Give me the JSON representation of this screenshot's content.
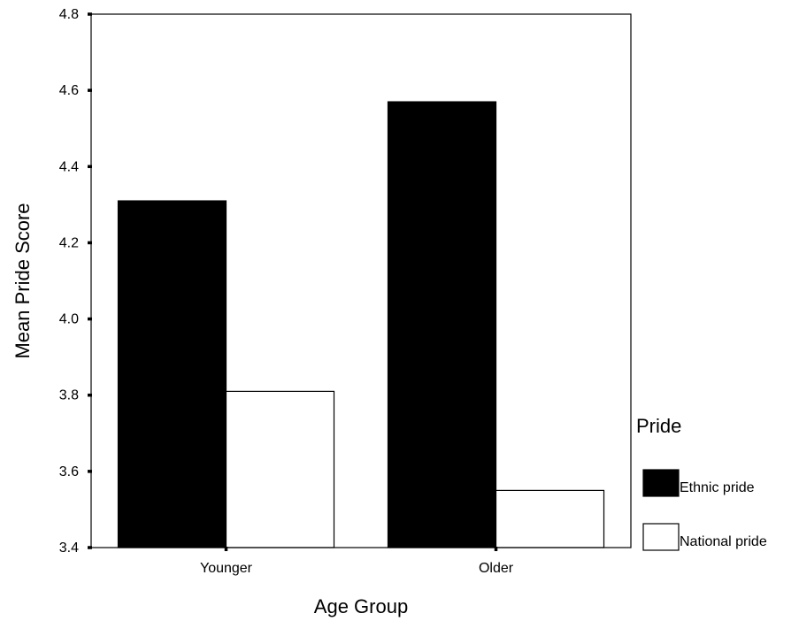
{
  "chart_data": {
    "type": "bar",
    "categories": [
      "Younger",
      "Older"
    ],
    "series": [
      {
        "name": "Ethnic pride",
        "values": [
          4.31,
          4.57
        ],
        "color": "#000000"
      },
      {
        "name": "National pride",
        "values": [
          3.81,
          3.55
        ],
        "color": "#ffffff"
      }
    ],
    "xlabel": "Age Group",
    "ylabel": "Mean Pride Score",
    "ylim": [
      3.4,
      4.8
    ],
    "yticks": [
      "3.4",
      "3.6",
      "3.8",
      "4.0",
      "4.2",
      "4.4",
      "4.6",
      "4.8"
    ],
    "legend": {
      "title": "Pride",
      "position": "right"
    },
    "grid": false
  }
}
